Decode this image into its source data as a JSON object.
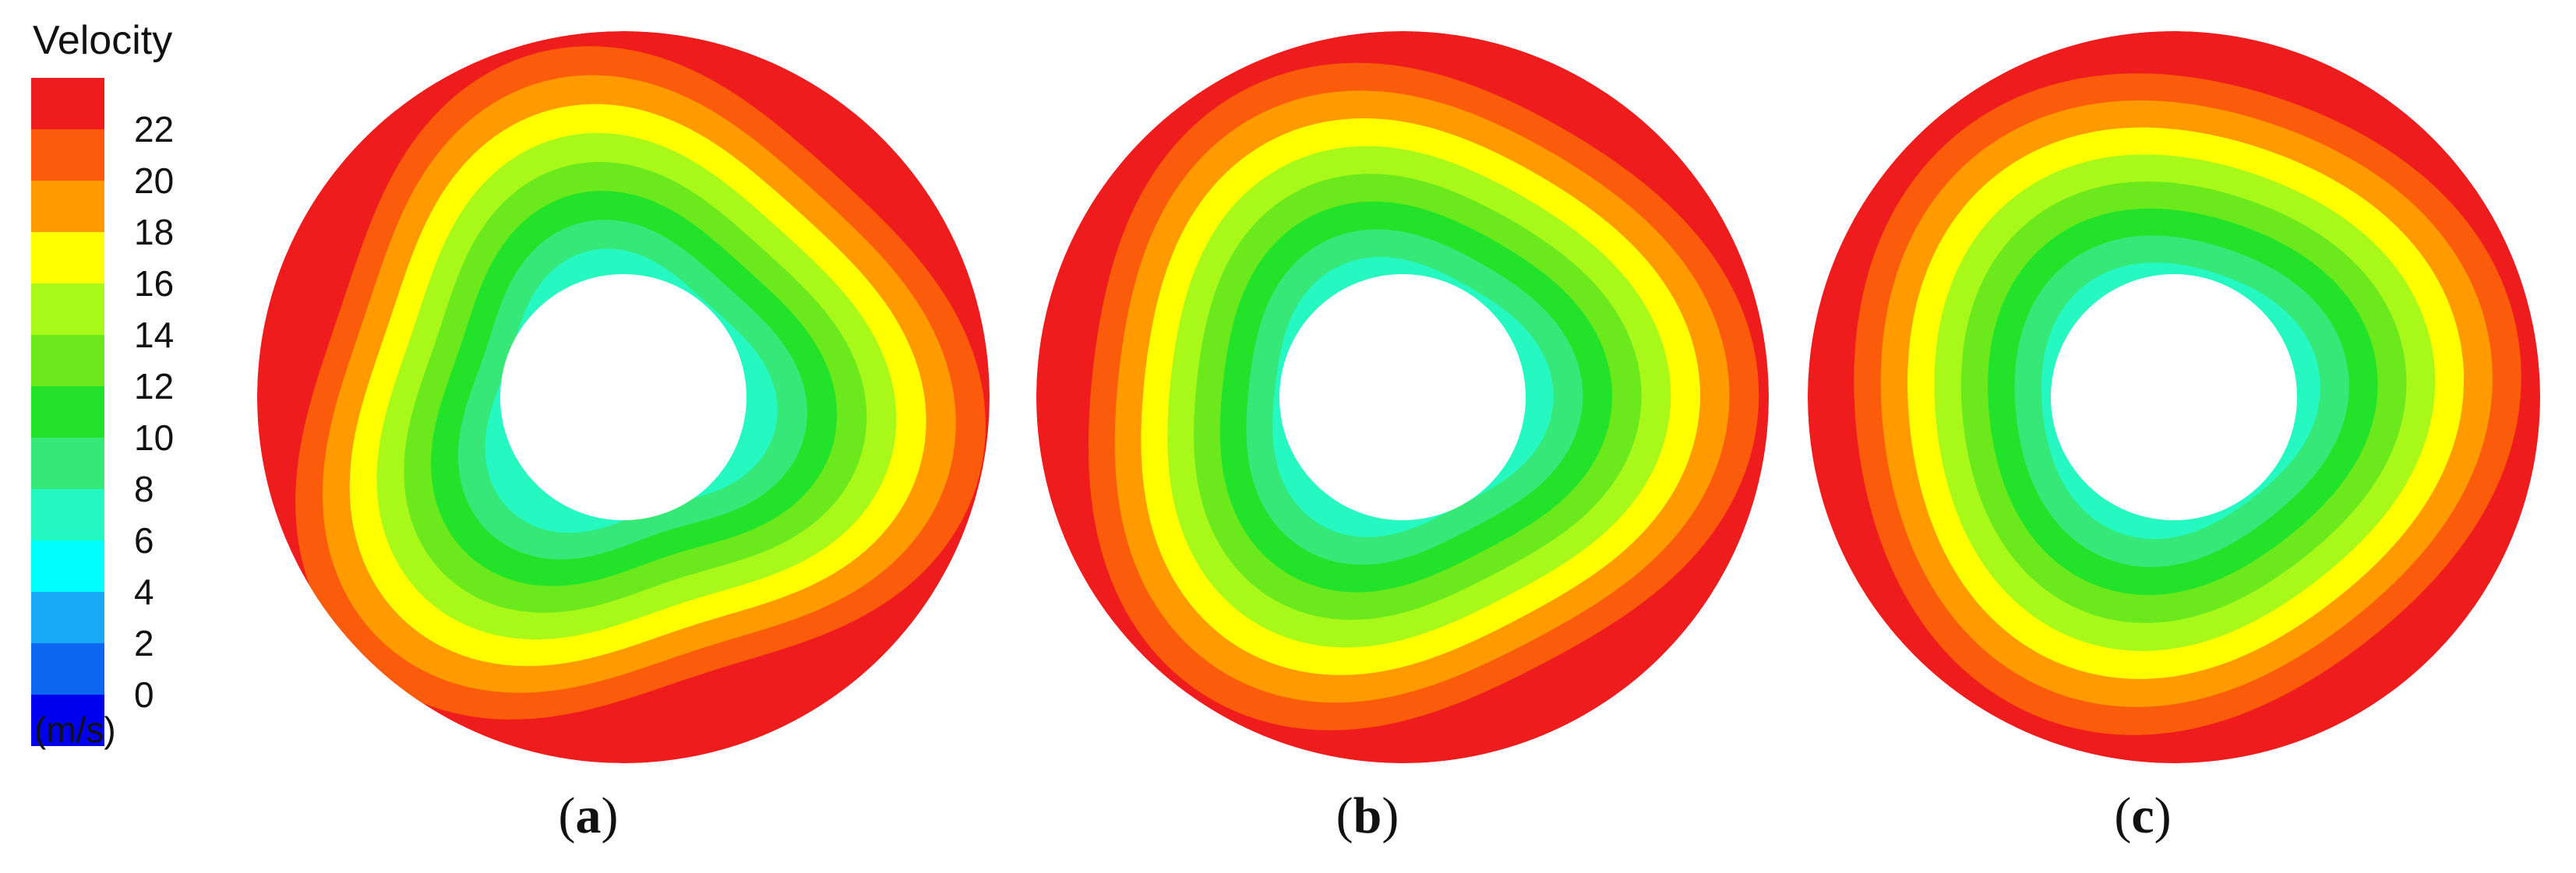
{
  "legend": {
    "title": "Velocity",
    "unit": "(m/s)",
    "ticks": [
      "22",
      "20",
      "18",
      "16",
      "14",
      "12",
      "10",
      "8",
      "6",
      "4",
      "2",
      "0"
    ],
    "colors": [
      "#ee1c1c",
      "#fb5c0c",
      "#ff9a00",
      "#ffff00",
      "#a8f91a",
      "#6ce91c",
      "#22e22a",
      "#36e878",
      "#25f8c0",
      "#00ffff",
      "#18a8f6",
      "#0d66ef",
      "#0000ee"
    ]
  },
  "panels": [
    {
      "label_open": "(",
      "label_letter": "a",
      "label_close": ")"
    },
    {
      "label_open": "(",
      "label_letter": "b",
      "label_close": ")"
    },
    {
      "label_open": "(",
      "label_letter": "c",
      "label_close": ")"
    }
  ]
}
